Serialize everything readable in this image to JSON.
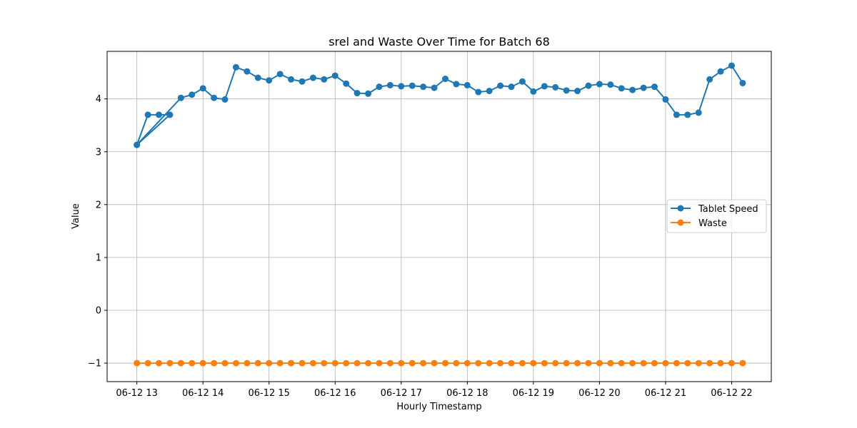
{
  "chart_data": {
    "type": "line",
    "title": "srel and Waste Over Time for Batch 68",
    "xlabel": "Hourly Timestamp",
    "ylabel": "Value",
    "ylim": [
      -1.35,
      4.9
    ],
    "yticks": [
      -1,
      0,
      1,
      2,
      3,
      4
    ],
    "ytick_labels": [
      "−1",
      "0",
      "1",
      "2",
      "3",
      "4"
    ],
    "xtick_labels": [
      "06-12 13",
      "06-12 14",
      "06-12 15",
      "06-12 16",
      "06-12 17",
      "06-12 18",
      "06-12 19",
      "06-12 20",
      "06-12 21",
      "06-12 22"
    ],
    "grid": true,
    "legend_position": "center-right",
    "x_hours": [
      0,
      0.167,
      0.333,
      0.5,
      0.667,
      0.833,
      1.0,
      1.167,
      1.333,
      1.5,
      1.667,
      1.833,
      2.0,
      2.167,
      2.333,
      2.5,
      2.667,
      2.833,
      3.0,
      3.167,
      3.333,
      3.5,
      3.667,
      3.833,
      4.0,
      4.167,
      4.333,
      4.5,
      4.667,
      4.833,
      5.0,
      5.167,
      5.333,
      5.5,
      5.667,
      5.833,
      6.0,
      6.167,
      6.333,
      6.5,
      6.667,
      6.833,
      7.0,
      7.167,
      7.333,
      7.5,
      7.667,
      7.833,
      8.0,
      8.167,
      8.333,
      8.5,
      8.667,
      8.833,
      9.0,
      9.167
    ],
    "series": [
      {
        "name": "Tablet Speed",
        "color": "#1f77b4",
        "x_hours": [
          0,
          0.167,
          0.333,
          0.5,
          0,
          0.667,
          0.833,
          1.0,
          1.167,
          1.333,
          1.5,
          1.667,
          1.833,
          2.0,
          2.167,
          2.333,
          2.5,
          2.667,
          2.833,
          3.0,
          3.167,
          3.333,
          3.5,
          3.667,
          3.833,
          4.0,
          4.167,
          4.333,
          4.5,
          4.667,
          4.833,
          5.0,
          5.167,
          5.333,
          5.5,
          5.667,
          5.833,
          6.0,
          6.167,
          6.333,
          6.5,
          6.667,
          6.833,
          7.0,
          7.167,
          7.333,
          7.5,
          7.667,
          7.833,
          8.0,
          8.167,
          8.333,
          8.5,
          8.667,
          8.833,
          9.0,
          9.167
        ],
        "values": [
          3.13,
          3.7,
          3.7,
          3.7,
          3.13,
          4.02,
          4.08,
          4.2,
          4.02,
          3.99,
          4.6,
          4.52,
          4.4,
          4.35,
          4.47,
          4.37,
          4.33,
          4.4,
          4.37,
          4.44,
          4.29,
          4.11,
          4.1,
          4.23,
          4.26,
          4.24,
          4.25,
          4.23,
          4.21,
          4.38,
          4.28,
          4.26,
          4.13,
          4.15,
          4.25,
          4.23,
          4.33,
          4.14,
          4.24,
          4.22,
          4.16,
          4.15,
          4.25,
          4.28,
          4.27,
          4.2,
          4.17,
          4.21,
          4.23,
          3.99,
          3.7,
          3.7,
          3.74,
          4.37,
          4.52,
          4.63,
          4.3
        ]
      },
      {
        "name": "Waste",
        "color": "#ff7f0e",
        "x_hours": [
          0,
          0.167,
          0.333,
          0.5,
          0.667,
          0.833,
          1.0,
          1.167,
          1.333,
          1.5,
          1.667,
          1.833,
          2.0,
          2.167,
          2.333,
          2.5,
          2.667,
          2.833,
          3.0,
          3.167,
          3.333,
          3.5,
          3.667,
          3.833,
          4.0,
          4.167,
          4.333,
          4.5,
          4.667,
          4.833,
          5.0,
          5.167,
          5.333,
          5.5,
          5.667,
          5.833,
          6.0,
          6.167,
          6.333,
          6.5,
          6.667,
          6.833,
          7.0,
          7.167,
          7.333,
          7.5,
          7.667,
          7.833,
          8.0,
          8.167,
          8.333,
          8.5,
          8.667,
          8.833,
          9.0,
          9.167
        ],
        "values": [
          -1,
          -1,
          -1,
          -1,
          -1,
          -1,
          -1,
          -1,
          -1,
          -1,
          -1,
          -1,
          -1,
          -1,
          -1,
          -1,
          -1,
          -1,
          -1,
          -1,
          -1,
          -1,
          -1,
          -1,
          -1,
          -1,
          -1,
          -1,
          -1,
          -1,
          -1,
          -1,
          -1,
          -1,
          -1,
          -1,
          -1,
          -1,
          -1,
          -1,
          -1,
          -1,
          -1,
          -1,
          -1,
          -1,
          -1,
          -1,
          -1,
          -1,
          -1,
          -1,
          -1,
          -1,
          -1,
          -1
        ]
      }
    ]
  }
}
